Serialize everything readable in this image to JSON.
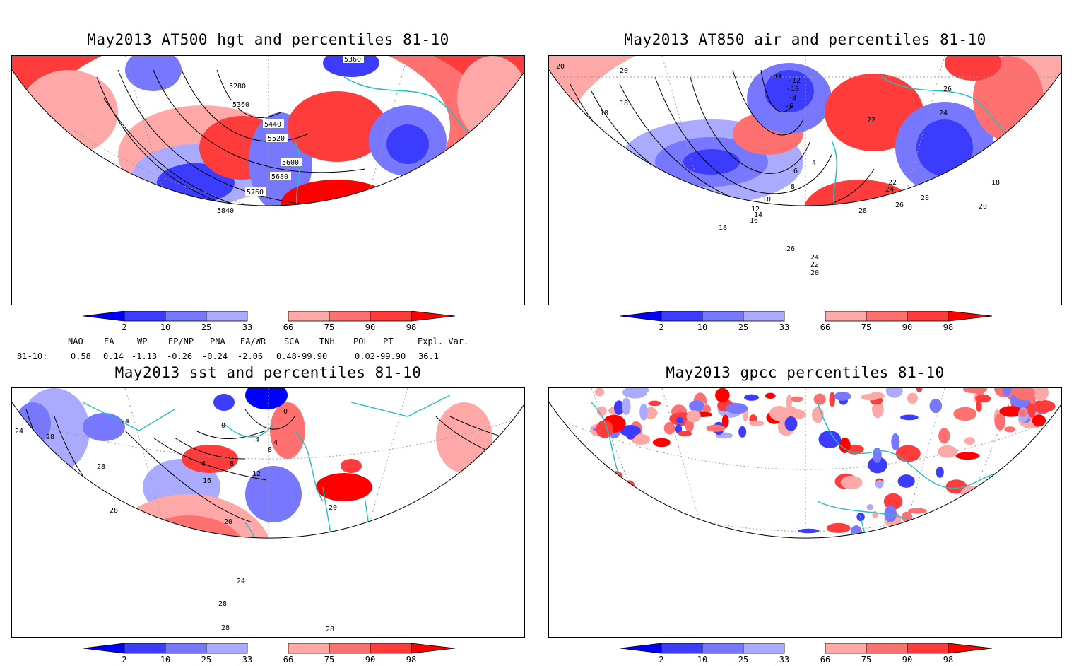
{
  "panels": [
    {
      "id": "p1",
      "title": "May2013 AT500 hgt and percentiles 81-10",
      "contour_labels": [
        "5280",
        "5360",
        "5440",
        "5520",
        "5600",
        "5680",
        "5760",
        "5840",
        "5360"
      ]
    },
    {
      "id": "p2",
      "title": "May2013 AT850 air and percentiles 81-10",
      "contour_labels": [
        "-14",
        "-12",
        "-10",
        "-8",
        "-6",
        "4",
        "6",
        "8",
        "10",
        "12",
        "14",
        "16",
        "18",
        "18",
        "18",
        "20",
        "20",
        "22",
        "24",
        "26",
        "28",
        "28",
        "26",
        "24",
        "22",
        "20",
        "18",
        "26",
        "24",
        "22",
        "20"
      ]
    },
    {
      "id": "p3",
      "title": "May2013 sst and percentiles 81-10",
      "contour_labels": [
        "24",
        "24",
        "28",
        "28",
        "28",
        "0",
        "0",
        "4",
        "4",
        "4",
        "8",
        "8",
        "12",
        "16",
        "20",
        "20",
        "24",
        "28",
        "28",
        "28"
      ]
    },
    {
      "id": "p4",
      "title": "May2013 gpcc percentiles 81-10",
      "contour_labels": []
    }
  ],
  "colorbar": {
    "labels": [
      "2",
      "10",
      "25",
      "33",
      "66",
      "75",
      "90",
      "98"
    ],
    "colors": {
      "b1": "#0000ff",
      "b2": "#3c3cff",
      "b3": "#7878ff",
      "b4": "#aaaaff",
      "r1": "#ffa8a8",
      "r2": "#ff7070",
      "r3": "#ff3c3c",
      "r4": "#ff0000"
    }
  },
  "indices": {
    "row_label": "81-10:",
    "items": [
      {
        "name": "NAO",
        "value": "0.58"
      },
      {
        "name": "EA",
        "value": "0.14"
      },
      {
        "name": "WP",
        "value": "-1.13"
      },
      {
        "name": "EP/NP",
        "value": "-0.26"
      },
      {
        "name": "PNA",
        "value": "-0.24"
      },
      {
        "name": "EA/WR",
        "value": "-2.06"
      },
      {
        "name": "SCA",
        "value": "0.48-99.90"
      },
      {
        "name": "TNH",
        "value": ""
      },
      {
        "name": "POL",
        "value": "0.02-99.90"
      },
      {
        "name": "PT",
        "value": ""
      },
      {
        "name": "Expl. Var.",
        "value": "36.1"
      }
    ]
  },
  "map_colors": {
    "coast": "#20c0c0",
    "contour": "#000000",
    "grid": "#999999"
  }
}
